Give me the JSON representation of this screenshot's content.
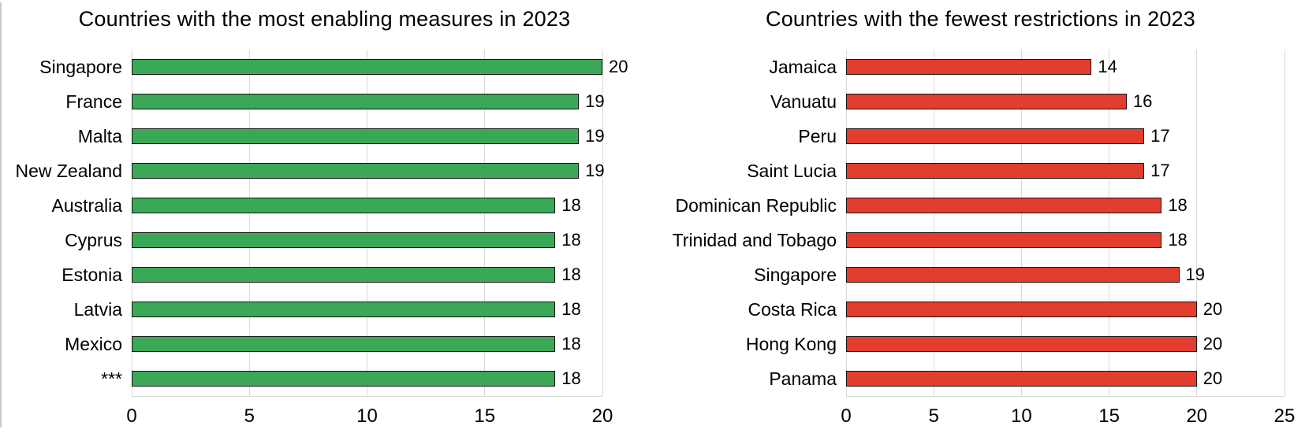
{
  "page": {
    "background": "#ffffff"
  },
  "divider": {
    "color": "#c9c9c9"
  },
  "grid_color": "#d9d9d9",
  "chart_data": [
    {
      "type": "bar",
      "orientation": "horizontal",
      "title": "Countries with the most enabling measures in 2023",
      "categories": [
        "Singapore",
        "France",
        "Malta",
        "New Zealand",
        "Australia",
        "Cyprus",
        "Estonia",
        "Latvia",
        "Mexico",
        "***"
      ],
      "values": [
        20,
        19,
        19,
        19,
        18,
        18,
        18,
        18,
        18,
        18
      ],
      "value_labels": [
        "20",
        "19",
        "19",
        "19",
        "18",
        "18",
        "18",
        "18",
        "18",
        "18"
      ],
      "bar_color": "#3aa857",
      "bar_border_color": "#141414",
      "xlim": [
        0,
        20
      ],
      "xticks": [
        "0",
        "5",
        "10",
        "15",
        "20"
      ],
      "grid": true,
      "legend": "none"
    },
    {
      "type": "bar",
      "orientation": "horizontal",
      "title": "Countries with the fewest restrictions in 2023",
      "categories": [
        "Jamaica",
        "Vanuatu",
        "Peru",
        "Saint Lucia",
        "Dominican Republic",
        "Trinidad and Tobago",
        "Singapore",
        "Costa Rica",
        "Hong Kong",
        "Panama"
      ],
      "values": [
        14,
        16,
        17,
        17,
        18,
        18,
        19,
        20,
        20,
        20
      ],
      "value_labels": [
        "14",
        "16",
        "17",
        "17",
        "18",
        "18",
        "19",
        "20",
        "20",
        "20"
      ],
      "bar_color": "#e23d2e",
      "bar_border_color": "#141414",
      "xlim": [
        0,
        25
      ],
      "xticks": [
        "0",
        "5",
        "10",
        "15",
        "20",
        "25"
      ],
      "grid": true,
      "legend": "none"
    }
  ]
}
